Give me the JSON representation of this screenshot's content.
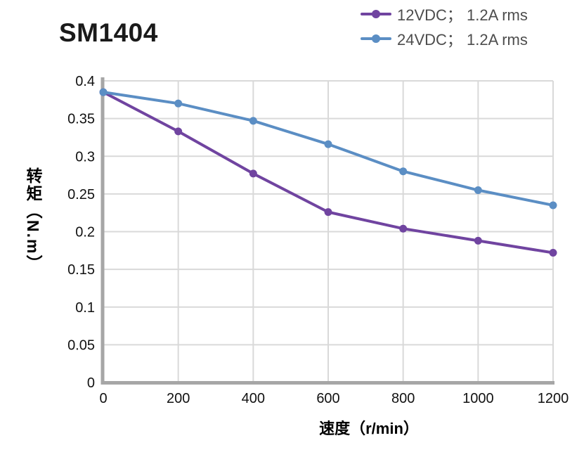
{
  "chart_data": {
    "type": "line",
    "title": "SM1404",
    "xlabel": "速度（r/min）",
    "ylabel": "转矩（N.m）",
    "xlim": [
      0,
      1200
    ],
    "ylim": [
      0,
      0.4
    ],
    "grid": true,
    "legend_position": "top-right",
    "x": [
      0,
      200,
      400,
      600,
      800,
      1000,
      1200
    ],
    "series": [
      {
        "name": "12VDC； 1.2A rms",
        "color": "#7044A0",
        "values": [
          0.385,
          0.333,
          0.277,
          0.226,
          0.204,
          0.188,
          0.172
        ]
      },
      {
        "name": "24VDC； 1.2A rms",
        "color": "#5B8EC4",
        "values": [
          0.385,
          0.37,
          0.347,
          0.316,
          0.28,
          0.255,
          0.235
        ]
      }
    ],
    "xticks": [
      {
        "label": "0",
        "value": 0
      },
      {
        "label": "200",
        "value": 200
      },
      {
        "label": "400",
        "value": 400
      },
      {
        "label": "600",
        "value": 600
      },
      {
        "label": "800",
        "value": 800
      },
      {
        "label": "1000",
        "value": 1000
      },
      {
        "label": "1200",
        "value": 1200
      }
    ],
    "yticks": [
      {
        "label": "0",
        "value": 0
      },
      {
        "label": "0.05",
        "value": 0.05
      },
      {
        "label": "0.1",
        "value": 0.1
      },
      {
        "label": "0.15",
        "value": 0.15
      },
      {
        "label": "0.2",
        "value": 0.2
      },
      {
        "label": "0.25",
        "value": 0.25
      },
      {
        "label": "0.3",
        "value": 0.3
      },
      {
        "label": "0.35",
        "value": 0.35
      },
      {
        "label": "0.4",
        "value": 0.4
      }
    ],
    "colors": {
      "grid": "#D9D9D9",
      "axis": "#A6A6A6",
      "tick_text": "#111111",
      "legend_text": "#4D4D4D",
      "title_text": "#1A1A1A"
    }
  }
}
